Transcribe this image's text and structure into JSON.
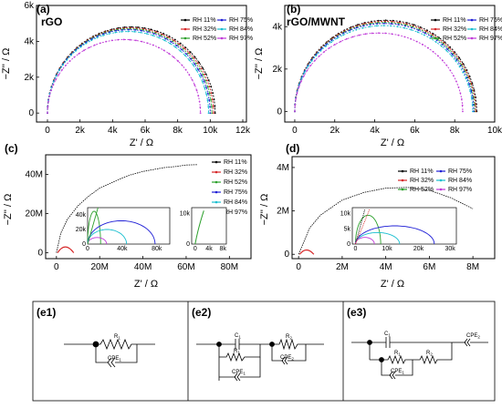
{
  "figure": {
    "panels": {
      "a": {
        "label": "(a)",
        "title": "rGO"
      },
      "b": {
        "label": "(b)",
        "title": "rGO/MWNT"
      },
      "c": {
        "label": "(c)"
      },
      "d": {
        "label": "(d)"
      },
      "e1": {
        "label": "(e1)"
      },
      "e2": {
        "label": "(e2)"
      },
      "e3": {
        "label": "(e3)"
      }
    },
    "legend": [
      "RH 11%",
      "RH 32%",
      "RH 52%",
      "RH 75%",
      "RH 84%",
      "RH 97%"
    ],
    "colors": {
      "RH 11%": "#000000",
      "RH 32%": "#d62728",
      "RH 52%": "#2ca02c",
      "RH 75%": "#1f1fd6",
      "RH 84%": "#17becf",
      "RH 97%": "#c03ad8"
    },
    "circuits": {
      "e1": {
        "R1": "R",
        "R1_sub": "1",
        "CPE1": "CPE",
        "CPE1_sub": "1"
      },
      "e2": {
        "C1": "C",
        "C1_sub": "1",
        "R1": "R",
        "R1_sub": "1",
        "CPE1": "CPE",
        "CPE1_sub": "1",
        "R2": "R",
        "R2_sub": "2",
        "CPE2": "CPE",
        "CPE2_sub": "2"
      },
      "e3": {
        "C1": "C",
        "C1_sub": "1",
        "R1": "R",
        "R1_sub": "1",
        "R2": "R",
        "R2_sub": "2",
        "CPE1": "CPE",
        "CPE1_sub": "1",
        "CPE2": "CPE",
        "CPE2_sub": "2"
      }
    }
  },
  "chart_data": [
    {
      "type": "scatter",
      "panel": "a",
      "title": "rGO",
      "xlabel": "Z' / Ω",
      "ylabel": "−Z'' / Ω",
      "xlim": [
        0,
        12000
      ],
      "ylim": [
        -500,
        6000
      ],
      "xticks": [
        "0",
        "2k",
        "4k",
        "6k",
        "8k",
        "10k",
        "12k"
      ],
      "yticks": [
        "0",
        "2k",
        "4k",
        "6k"
      ],
      "series": [
        {
          "name": "RH 11%",
          "x0": 0,
          "x1": 10300,
          "ymax": 4800
        },
        {
          "name": "RH 32%",
          "x0": 0,
          "x1": 10200,
          "ymax": 4750
        },
        {
          "name": "RH 52%",
          "x0": 0,
          "x1": 10100,
          "ymax": 4700
        },
        {
          "name": "RH 75%",
          "x0": 0,
          "x1": 10000,
          "ymax": 4650
        },
        {
          "name": "RH 84%",
          "x0": 0,
          "x1": 9900,
          "ymax": 4550
        },
        {
          "name": "RH 97%",
          "x0": 0,
          "x1": 9400,
          "ymax": 4100
        }
      ]
    },
    {
      "type": "scatter",
      "panel": "b",
      "title": "rGO/MWNT",
      "xlabel": "Z' / Ω",
      "ylabel": "−Z'' / Ω",
      "xlim": [
        -500,
        10000
      ],
      "ylim": [
        -500,
        5000
      ],
      "xticks": [
        "0",
        "2k",
        "4k",
        "6k",
        "8k",
        "10k"
      ],
      "yticks": [
        "0",
        "2k",
        "4k"
      ],
      "series": [
        {
          "name": "RH 11%",
          "x0": 0,
          "x1": 9100,
          "ymax": 4300
        },
        {
          "name": "RH 32%",
          "x0": 0,
          "x1": 9050,
          "ymax": 4250
        },
        {
          "name": "RH 52%",
          "x0": 0,
          "x1": 9000,
          "ymax": 4200
        },
        {
          "name": "RH 75%",
          "x0": 0,
          "x1": 8950,
          "ymax": 4150
        },
        {
          "name": "RH 84%",
          "x0": 0,
          "x1": 8900,
          "ymax": 4050
        },
        {
          "name": "RH 97%",
          "x0": 0,
          "x1": 8400,
          "ymax": 3700
        }
      ]
    },
    {
      "type": "scatter",
      "panel": "c",
      "xlabel": "Z' / Ω",
      "ylabel": "−Z'' / Ω",
      "xlim": [
        -5000000,
        90000000
      ],
      "ylim": [
        -3000000,
        50000000
      ],
      "xticks": [
        "0",
        "20M",
        "40M",
        "60M",
        "80M"
      ],
      "yticks": [
        "0",
        "20M",
        "40M"
      ],
      "main_series": {
        "name": "RH 11%",
        "x": [
          0,
          2000000,
          5000000,
          10000000,
          15000000,
          20000000,
          25000000,
          30000000,
          35000000,
          40000000,
          45000000,
          50000000,
          55000000,
          60000000,
          65000000
        ],
        "y": [
          0,
          10000000,
          17000000,
          24000000,
          29000000,
          33000000,
          35500000,
          38000000,
          40000000,
          41500000,
          42500000,
          43500000,
          44000000,
          44800000,
          45000000
        ]
      },
      "inset1": {
        "xlim": [
          0,
          95000
        ],
        "ylim": [
          0,
          50000
        ],
        "xticks": [
          "0",
          "40k",
          "80k"
        ],
        "yticks": [
          "0",
          "20k",
          "40k"
        ],
        "series": [
          {
            "name": "RH 52%",
            "x0": 0,
            "x1": 15000,
            "ymax": 45000
          },
          {
            "name": "RH 75%",
            "x0": 0,
            "x1": 78000,
            "ymax": 32000
          },
          {
            "name": "RH 84%",
            "x0": 0,
            "x1": 45000,
            "ymax": 20000
          },
          {
            "name": "RH 97%",
            "x0": 0,
            "x1": 22000,
            "ymax": 9000
          }
        ]
      },
      "inset2": {
        "xlim": [
          -1000,
          9000
        ],
        "ylim": [
          0,
          12000
        ],
        "xticks": [
          "0",
          "4k",
          "8k"
        ],
        "yticks": [
          "0",
          "10k"
        ]
      }
    },
    {
      "type": "scatter",
      "panel": "d",
      "xlabel": "Z' / Ω",
      "ylabel": "−Z'' / Ω",
      "xlim": [
        -300000,
        9000000
      ],
      "ylim": [
        -200000,
        4500000
      ],
      "xticks": [
        "0",
        "2M",
        "4M",
        "6M",
        "8M"
      ],
      "yticks": [
        "0",
        "2M",
        "4M"
      ],
      "main_series": {
        "name": "RH 11%",
        "x": [
          0,
          500000,
          1000000,
          2000000,
          3000000,
          4000000,
          5000000,
          6000000,
          7000000,
          8000000
        ],
        "y": [
          0,
          1200000,
          1800000,
          2500000,
          2850000,
          3050000,
          3080000,
          2950000,
          2600000,
          2100000
        ]
      },
      "inset1": {
        "xlim": [
          -1000,
          32000
        ],
        "ylim": [
          0,
          12000
        ],
        "xticks": [
          "0",
          "10k",
          "20k",
          "30k"
        ],
        "yticks": [
          "0",
          "5k",
          "10k"
        ],
        "series": [
          {
            "name": "RH 52%",
            "x0": 0,
            "x1": 8000,
            "ymax": 9500
          },
          {
            "name": "RH 75%",
            "x0": 0,
            "x1": 25000,
            "ymax": 6000
          },
          {
            "name": "RH 84%",
            "x0": 0,
            "x1": 14000,
            "ymax": 3800
          },
          {
            "name": "RH 97%",
            "x0": 0,
            "x1": 6000,
            "ymax": 2200
          }
        ]
      }
    }
  ]
}
